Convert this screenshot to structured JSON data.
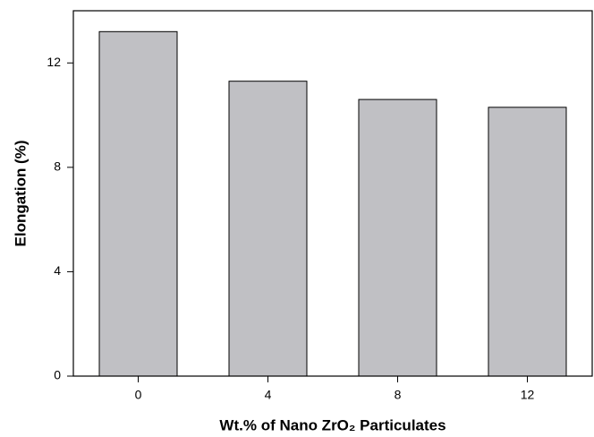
{
  "chart_data": {
    "type": "bar",
    "x_label": "Wt.% of Nano ZrO₂ Particulates",
    "y_label": "Elongation (%)",
    "categories": [
      "0",
      "4",
      "8",
      "12"
    ],
    "values": [
      13.2,
      11.3,
      10.6,
      10.3
    ],
    "color": "#c0c0c4",
    "ylim": [
      0,
      14
    ],
    "yticks": [
      0,
      4,
      8,
      12
    ],
    "grid": false
  }
}
